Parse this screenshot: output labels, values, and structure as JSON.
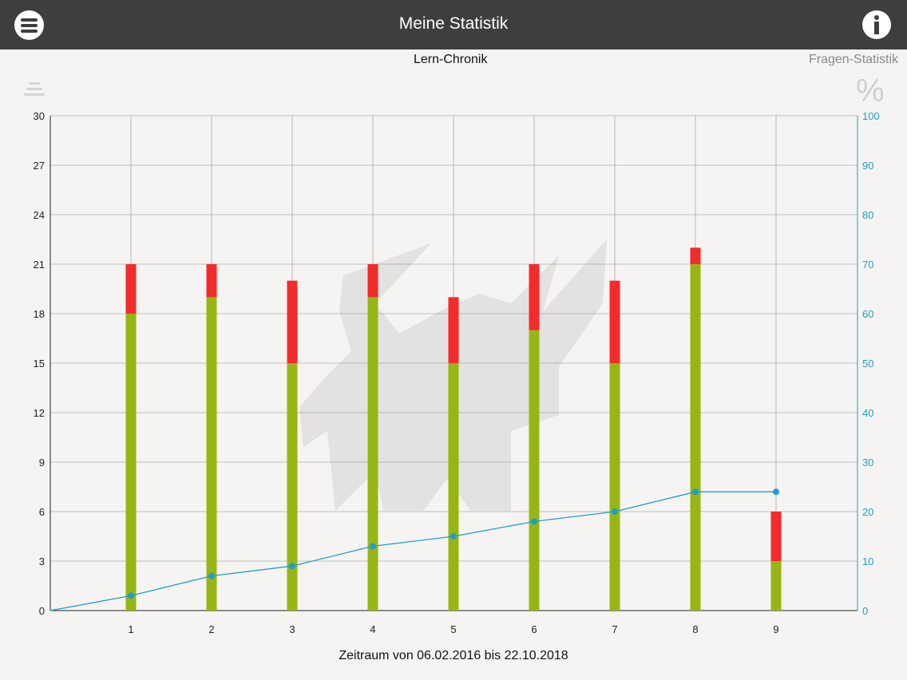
{
  "header": {
    "title": "Meine Statistik",
    "menu_icon": "menu-icon",
    "info_icon": "info-icon"
  },
  "tabs": {
    "left": "Lern-Chronik",
    "right": "Fragen-Statistik",
    "list_icon": "list-icon",
    "percent_icon": "percent-icon",
    "percent_symbol": "%"
  },
  "footer": {
    "text": "Zeitraum von 06.02.2016 bis 22.10.2018"
  },
  "colors": {
    "green": "#97b614",
    "red": "#f42b2b",
    "line": "#1f9ec7",
    "header_bg": "#3f3e3f"
  },
  "chart_data": {
    "type": "bar",
    "categories": [
      "1",
      "2",
      "3",
      "4",
      "5",
      "6",
      "7",
      "8",
      "9"
    ],
    "stacked": true,
    "series": [
      {
        "values": [
          18,
          19,
          15,
          19,
          15,
          17,
          15,
          21,
          3
        ],
        "color": "#97b614"
      },
      {
        "values": [
          3,
          2,
          5,
          2,
          4,
          4,
          5,
          1,
          3
        ],
        "color": "#f42b2b"
      }
    ],
    "line": {
      "axis": "right",
      "color": "#1f9ec7",
      "x": [
        0,
        1,
        2,
        3,
        4,
        5,
        6,
        7,
        8,
        9
      ],
      "values": [
        0,
        3,
        7,
        9,
        13,
        15,
        18,
        20,
        24,
        24
      ]
    },
    "ylim_left": [
      0,
      30
    ],
    "yticks_left": [
      "0",
      "3",
      "6",
      "9",
      "12",
      "15",
      "18",
      "21",
      "24",
      "27",
      "30"
    ],
    "ylim_right": [
      0,
      100
    ],
    "yticks_right": [
      "0",
      "10",
      "20",
      "30",
      "40",
      "50",
      "60",
      "70",
      "80",
      "90",
      "100"
    ],
    "grid": true
  }
}
